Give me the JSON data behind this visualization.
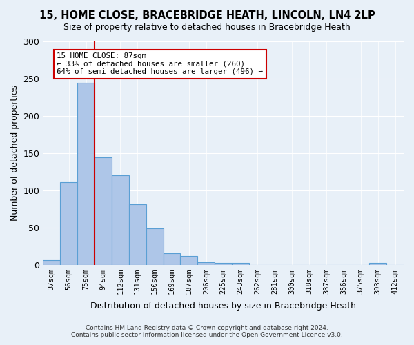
{
  "title1": "15, HOME CLOSE, BRACEBRIDGE HEATH, LINCOLN, LN4 2LP",
  "title2": "Size of property relative to detached houses in Bracebridge Heath",
  "xlabel": "Distribution of detached houses by size in Bracebridge Heath",
  "ylabel": "Number of detached properties",
  "footer1": "Contains HM Land Registry data © Crown copyright and database right 2024.",
  "footer2": "Contains public sector information licensed under the Open Government Licence v3.0.",
  "annotation_line1": "15 HOME CLOSE: 87sqm",
  "annotation_line2": "← 33% of detached houses are smaller (260)",
  "annotation_line3": "64% of semi-detached houses are larger (496) →",
  "property_size": 87,
  "bar_categories": [
    "37sqm",
    "56sqm",
    "75sqm",
    "94sqm",
    "112sqm",
    "131sqm",
    "150sqm",
    "169sqm",
    "187sqm",
    "206sqm",
    "225sqm",
    "243sqm",
    "262sqm",
    "281sqm",
    "300sqm",
    "318sqm",
    "337sqm",
    "356sqm",
    "375sqm",
    "393sqm",
    "412sqm"
  ],
  "bar_values": [
    6,
    111,
    244,
    144,
    120,
    81,
    49,
    15,
    12,
    3,
    2,
    2,
    0,
    0,
    0,
    0,
    0,
    0,
    0,
    2,
    0
  ],
  "bar_color": "#aec6e8",
  "bar_edge_color": "#5a9fd4",
  "vline_color": "#cc0000",
  "vline_position": 3,
  "annotation_box_color": "#ffffff",
  "annotation_box_edge": "#cc0000",
  "background_color": "#e8f0f8",
  "ylim": [
    0,
    300
  ],
  "yticks": [
    0,
    50,
    100,
    150,
    200,
    250,
    300
  ]
}
